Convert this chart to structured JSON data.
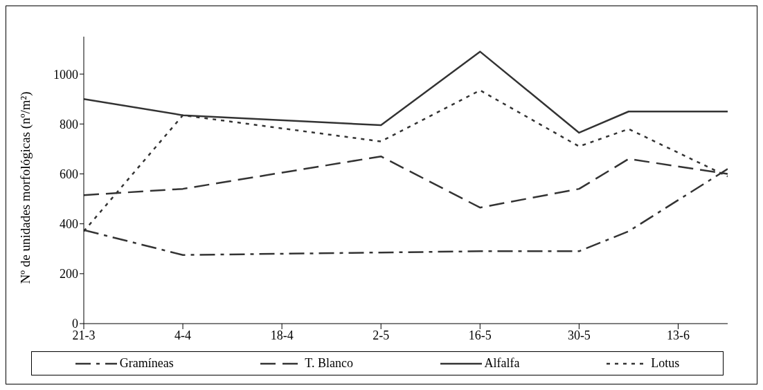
{
  "chart_data": {
    "type": "line",
    "ylabel": "Nº de unidades morfológicas (nº/m²)",
    "x": [
      "--03-21",
      "--04-04",
      "--05-02",
      "--05-16",
      "--05-30",
      "--06-06",
      "--06-20"
    ],
    "xlim": [
      "--03-21",
      "--06-20"
    ],
    "xticks": [
      {
        "value": "--03-21",
        "label": "21-3"
      },
      {
        "value": "--04-04",
        "label": "4-4"
      },
      {
        "value": "--04-18",
        "label": "18-4"
      },
      {
        "value": "--05-02",
        "label": "2-5"
      },
      {
        "value": "--05-16",
        "label": "16-5"
      },
      {
        "value": "--05-30",
        "label": "30-5"
      },
      {
        "value": "--06-13",
        "label": "13-6"
      }
    ],
    "ylim": [
      0,
      1150
    ],
    "yticks": [
      0,
      200,
      400,
      600,
      800,
      1000
    ],
    "series": [
      {
        "name": "Gramíneas",
        "color": "#333333",
        "line_style": "dashdot",
        "values": [
          375,
          275,
          285,
          290,
          290,
          370,
          620
        ]
      },
      {
        "name": "T. Blanco",
        "color": "#333333",
        "line_style": "dashed",
        "values": [
          515,
          540,
          670,
          465,
          540,
          660,
          600
        ]
      },
      {
        "name": "Alfalfa",
        "color": "#333333",
        "line_style": "solid",
        "values": [
          900,
          835,
          795,
          1090,
          765,
          850,
          850
        ]
      },
      {
        "name": "Lotus",
        "color": "#333333",
        "line_style": "dotted",
        "values": [
          370,
          835,
          730,
          935,
          710,
          780,
          590
        ]
      }
    ],
    "grid": false,
    "legend": "bottom",
    "marker": "none"
  }
}
